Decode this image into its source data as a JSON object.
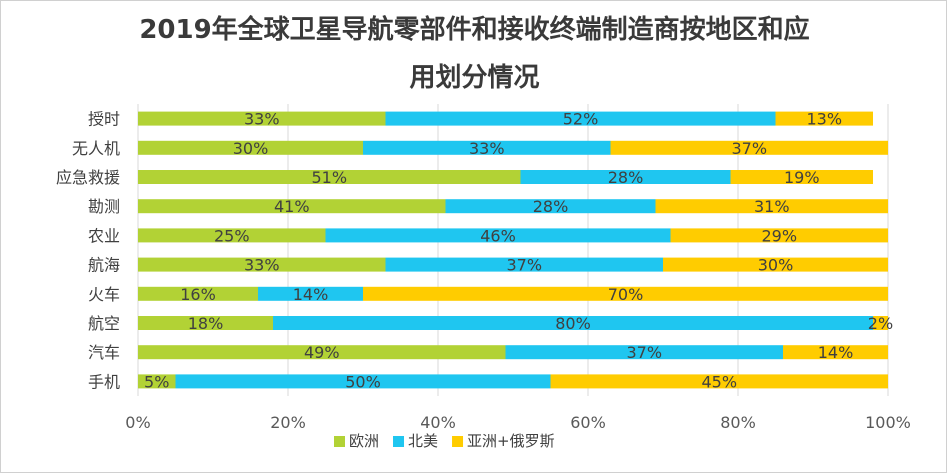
{
  "title_line1": "2019年全球卫星导航零部件和接收终端制造商按地区和应",
  "title_line2": "用划分情况",
  "chart_data": {
    "type": "bar",
    "orientation": "horizontal",
    "stacked": true,
    "categories": [
      "授时",
      "无人机",
      "应急救援",
      "勘测",
      "农业",
      "航海",
      "火车",
      "航空",
      "汽车",
      "手机"
    ],
    "series": [
      {
        "name": "欧洲",
        "color": "#b2d235",
        "values": [
          33,
          30,
          51,
          41,
          25,
          33,
          16,
          18,
          49,
          5
        ]
      },
      {
        "name": "北美",
        "color": "#1fc6f0",
        "values": [
          52,
          33,
          28,
          28,
          46,
          37,
          14,
          80,
          37,
          50
        ]
      },
      {
        "name": "亚洲+俄罗斯",
        "color": "#ffcc00",
        "values": [
          13,
          37,
          19,
          31,
          29,
          30,
          70,
          2,
          14,
          45
        ]
      }
    ],
    "xlim": [
      0,
      100
    ],
    "x_ticks": [
      "0%",
      "20%",
      "40%",
      "60%",
      "80%",
      "100%"
    ],
    "legend_position": "bottom",
    "grid": true
  }
}
